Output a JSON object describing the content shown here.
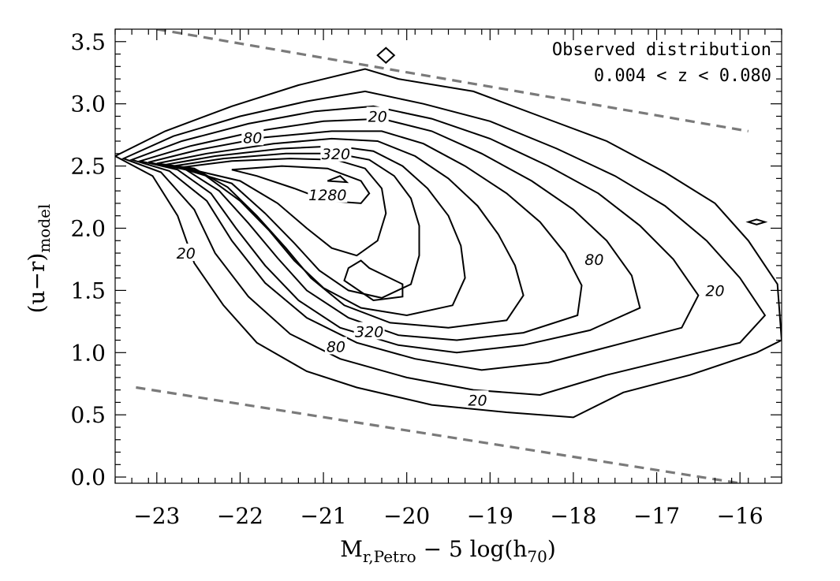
{
  "chart_data": {
    "type": "contour",
    "title": "",
    "xlabel": "M",
    "xlabel_sub": "r,Petro",
    "xlabel_rest_a": " − 5 log(h",
    "xlabel_sub2": "70",
    "xlabel_rest_b": ")",
    "ylabel": "(u−r)",
    "ylabel_sub": "model",
    "xlim": [
      -23.5,
      -15.5
    ],
    "ylim": [
      -0.05,
      3.6
    ],
    "xticks": [
      -23,
      -22,
      -21,
      -20,
      -19,
      -18,
      -17,
      -16
    ],
    "xtick_labels": [
      "−23",
      "−22",
      "−21",
      "−20",
      "−19",
      "−18",
      "−17",
      "−16"
    ],
    "yticks": [
      0.0,
      0.5,
      1.0,
      1.5,
      2.0,
      2.5,
      3.0,
      3.5
    ],
    "ytick_labels": [
      "0.0",
      "0.5",
      "1.0",
      "1.5",
      "2.0",
      "2.5",
      "3.0",
      "3.5"
    ],
    "grid": false,
    "annotations": [
      "Observed distribution",
      "0.004 < z < 0.080"
    ],
    "contour_labels": [
      {
        "text": "20",
        "x": -20.35,
        "y": 2.9
      },
      {
        "text": "80",
        "x": -21.85,
        "y": 2.73
      },
      {
        "text": "320",
        "x": -20.85,
        "y": 2.6
      },
      {
        "text": "1280",
        "x": -20.95,
        "y": 2.27
      },
      {
        "text": "20",
        "x": -22.65,
        "y": 1.8
      },
      {
        "text": "80",
        "x": -17.75,
        "y": 1.75
      },
      {
        "text": "20",
        "x": -16.3,
        "y": 1.5
      },
      {
        "text": "320",
        "x": -20.45,
        "y": 1.17
      },
      {
        "text": "80",
        "x": -20.85,
        "y": 1.05
      },
      {
        "text": "20",
        "x": -19.15,
        "y": 0.62
      }
    ],
    "reference_lines": [
      {
        "name": "upper-cut",
        "points": [
          [
            -23.0,
            3.6
          ],
          [
            -15.9,
            2.78
          ]
        ],
        "style": "dashed",
        "color": "#7a7a7a"
      },
      {
        "name": "lower-cut",
        "points": [
          [
            -23.25,
            0.72
          ],
          [
            -16.0,
            -0.05
          ]
        ],
        "style": "dashed",
        "color": "#7a7a7a"
      }
    ],
    "contours": [
      {
        "level": "outer",
        "points": [
          [
            -23.5,
            2.58
          ],
          [
            -22.9,
            2.78
          ],
          [
            -22.1,
            2.98
          ],
          [
            -21.3,
            3.15
          ],
          [
            -20.5,
            3.28
          ],
          [
            -20.1,
            3.2
          ],
          [
            -19.2,
            3.1
          ],
          [
            -18.4,
            2.9
          ],
          [
            -17.6,
            2.7
          ],
          [
            -16.9,
            2.45
          ],
          [
            -16.3,
            2.2
          ],
          [
            -15.9,
            1.9
          ],
          [
            -15.55,
            1.55
          ],
          [
            -15.5,
            1.1
          ],
          [
            -15.8,
            1.0
          ],
          [
            -16.6,
            0.82
          ],
          [
            -17.4,
            0.68
          ],
          [
            -18.0,
            0.48
          ],
          [
            -18.8,
            0.52
          ],
          [
            -19.7,
            0.58
          ],
          [
            -20.6,
            0.72
          ],
          [
            -21.2,
            0.85
          ],
          [
            -21.8,
            1.08
          ],
          [
            -22.2,
            1.38
          ],
          [
            -22.55,
            1.72
          ],
          [
            -22.75,
            2.1
          ],
          [
            -23.05,
            2.42
          ]
        ]
      },
      {
        "level": "c2",
        "points": [
          [
            -23.4,
            2.56
          ],
          [
            -22.8,
            2.74
          ],
          [
            -22.0,
            2.9
          ],
          [
            -21.2,
            3.02
          ],
          [
            -20.5,
            3.1
          ],
          [
            -19.8,
            3.0
          ],
          [
            -19.0,
            2.86
          ],
          [
            -18.2,
            2.64
          ],
          [
            -17.5,
            2.42
          ],
          [
            -16.9,
            2.18
          ],
          [
            -16.4,
            1.9
          ],
          [
            -16.0,
            1.6
          ],
          [
            -15.7,
            1.3
          ],
          [
            -16.0,
            1.08
          ],
          [
            -16.8,
            0.95
          ],
          [
            -17.6,
            0.82
          ],
          [
            -18.4,
            0.66
          ],
          [
            -19.2,
            0.7
          ],
          [
            -20.0,
            0.8
          ],
          [
            -20.8,
            0.95
          ],
          [
            -21.4,
            1.15
          ],
          [
            -21.9,
            1.45
          ],
          [
            -22.3,
            1.8
          ],
          [
            -22.55,
            2.15
          ],
          [
            -22.95,
            2.45
          ]
        ]
      },
      {
        "level": "c3",
        "points": [
          [
            -23.3,
            2.55
          ],
          [
            -22.7,
            2.7
          ],
          [
            -21.9,
            2.84
          ],
          [
            -21.1,
            2.94
          ],
          [
            -20.4,
            2.98
          ],
          [
            -19.7,
            2.88
          ],
          [
            -19.0,
            2.72
          ],
          [
            -18.3,
            2.5
          ],
          [
            -17.7,
            2.28
          ],
          [
            -17.2,
            2.02
          ],
          [
            -16.8,
            1.75
          ],
          [
            -16.5,
            1.46
          ],
          [
            -16.7,
            1.2
          ],
          [
            -17.5,
            1.06
          ],
          [
            -18.3,
            0.92
          ],
          [
            -19.1,
            0.86
          ],
          [
            -19.9,
            0.95
          ],
          [
            -20.6,
            1.08
          ],
          [
            -21.2,
            1.28
          ],
          [
            -21.7,
            1.56
          ],
          [
            -22.1,
            1.9
          ],
          [
            -22.4,
            2.22
          ],
          [
            -22.85,
            2.46
          ]
        ]
      },
      {
        "level": "c4",
        "points": [
          [
            -23.2,
            2.54
          ],
          [
            -22.6,
            2.66
          ],
          [
            -21.8,
            2.78
          ],
          [
            -21.0,
            2.86
          ],
          [
            -20.3,
            2.88
          ],
          [
            -19.7,
            2.78
          ],
          [
            -19.1,
            2.6
          ],
          [
            -18.5,
            2.38
          ],
          [
            -18.0,
            2.15
          ],
          [
            -17.6,
            1.9
          ],
          [
            -17.3,
            1.62
          ],
          [
            -17.2,
            1.36
          ],
          [
            -17.8,
            1.18
          ],
          [
            -18.6,
            1.06
          ],
          [
            -19.4,
            1.0
          ],
          [
            -20.1,
            1.06
          ],
          [
            -20.8,
            1.2
          ],
          [
            -21.3,
            1.42
          ],
          [
            -21.7,
            1.7
          ],
          [
            -22.05,
            2.0
          ],
          [
            -22.35,
            2.28
          ],
          [
            -22.75,
            2.47
          ]
        ]
      },
      {
        "level": "c5",
        "points": [
          [
            -23.1,
            2.53
          ],
          [
            -22.5,
            2.63
          ],
          [
            -21.7,
            2.73
          ],
          [
            -20.9,
            2.78
          ],
          [
            -20.3,
            2.78
          ],
          [
            -19.8,
            2.68
          ],
          [
            -19.3,
            2.5
          ],
          [
            -18.8,
            2.28
          ],
          [
            -18.4,
            2.05
          ],
          [
            -18.1,
            1.8
          ],
          [
            -17.9,
            1.54
          ],
          [
            -17.95,
            1.3
          ],
          [
            -18.6,
            1.16
          ],
          [
            -19.4,
            1.1
          ],
          [
            -20.1,
            1.14
          ],
          [
            -20.7,
            1.28
          ],
          [
            -21.2,
            1.5
          ],
          [
            -21.55,
            1.76
          ],
          [
            -21.9,
            2.04
          ],
          [
            -22.25,
            2.3
          ],
          [
            -22.65,
            2.47
          ]
        ]
      },
      {
        "level": "c6",
        "points": [
          [
            -23.0,
            2.52
          ],
          [
            -22.4,
            2.6
          ],
          [
            -21.6,
            2.68
          ],
          [
            -20.9,
            2.72
          ],
          [
            -20.35,
            2.7
          ],
          [
            -19.9,
            2.58
          ],
          [
            -19.5,
            2.4
          ],
          [
            -19.15,
            2.18
          ],
          [
            -18.9,
            1.95
          ],
          [
            -18.7,
            1.7
          ],
          [
            -18.6,
            1.46
          ],
          [
            -18.8,
            1.26
          ],
          [
            -19.5,
            1.2
          ],
          [
            -20.2,
            1.24
          ],
          [
            -20.75,
            1.38
          ],
          [
            -21.15,
            1.6
          ],
          [
            -21.45,
            1.84
          ],
          [
            -21.8,
            2.1
          ],
          [
            -22.15,
            2.33
          ],
          [
            -22.55,
            2.48
          ]
        ]
      },
      {
        "level": "c7",
        "points": [
          [
            -22.9,
            2.51
          ],
          [
            -22.3,
            2.58
          ],
          [
            -21.5,
            2.64
          ],
          [
            -20.85,
            2.66
          ],
          [
            -20.4,
            2.62
          ],
          [
            -20.05,
            2.5
          ],
          [
            -19.75,
            2.32
          ],
          [
            -19.5,
            2.1
          ],
          [
            -19.35,
            1.86
          ],
          [
            -19.3,
            1.6
          ],
          [
            -19.45,
            1.38
          ],
          [
            -20.0,
            1.3
          ],
          [
            -20.55,
            1.36
          ],
          [
            -21.0,
            1.52
          ],
          [
            -21.35,
            1.74
          ],
          [
            -21.65,
            1.98
          ],
          [
            -22.0,
            2.22
          ],
          [
            -22.45,
            2.44
          ]
        ]
      },
      {
        "level": "c8",
        "points": [
          [
            -22.8,
            2.5
          ],
          [
            -22.2,
            2.56
          ],
          [
            -21.45,
            2.6
          ],
          [
            -20.85,
            2.6
          ],
          [
            -20.45,
            2.55
          ],
          [
            -20.15,
            2.42
          ],
          [
            -19.95,
            2.24
          ],
          [
            -19.85,
            2.02
          ],
          [
            -19.85,
            1.78
          ],
          [
            -19.95,
            1.55
          ],
          [
            -20.3,
            1.44
          ],
          [
            -20.7,
            1.5
          ],
          [
            -21.05,
            1.66
          ],
          [
            -21.35,
            1.88
          ],
          [
            -21.7,
            2.12
          ],
          [
            -22.1,
            2.36
          ]
        ]
      },
      {
        "level": "c9",
        "points": [
          [
            -22.7,
            2.49
          ],
          [
            -22.1,
            2.54
          ],
          [
            -21.4,
            2.56
          ],
          [
            -20.85,
            2.55
          ],
          [
            -20.5,
            2.48
          ],
          [
            -20.3,
            2.32
          ],
          [
            -20.25,
            2.12
          ],
          [
            -20.35,
            1.9
          ],
          [
            -20.6,
            1.78
          ],
          [
            -20.9,
            1.84
          ],
          [
            -21.2,
            2.0
          ],
          [
            -21.55,
            2.2
          ],
          [
            -22.0,
            2.38
          ]
        ]
      },
      {
        "level": "peak",
        "points": [
          [
            -22.1,
            2.47
          ],
          [
            -21.5,
            2.5
          ],
          [
            -20.95,
            2.48
          ],
          [
            -20.55,
            2.38
          ],
          [
            -20.45,
            2.28
          ],
          [
            -20.55,
            2.2
          ],
          [
            -20.95,
            2.22
          ],
          [
            -21.35,
            2.32
          ],
          [
            -21.8,
            2.42
          ]
        ]
      },
      {
        "level": "blob-lower",
        "points": [
          [
            -20.55,
            1.74
          ],
          [
            -20.45,
            1.68
          ],
          [
            -20.05,
            1.55
          ],
          [
            -20.05,
            1.45
          ],
          [
            -20.4,
            1.42
          ],
          [
            -20.75,
            1.58
          ],
          [
            -20.7,
            1.68
          ]
        ]
      },
      {
        "level": "blob-center",
        "points": [
          [
            -20.95,
            2.38
          ],
          [
            -20.8,
            2.42
          ],
          [
            -20.72,
            2.37
          ]
        ]
      },
      {
        "level": "speck-top",
        "points": [
          [
            -20.35,
            3.39
          ],
          [
            -20.25,
            3.45
          ],
          [
            -20.15,
            3.39
          ],
          [
            -20.25,
            3.33
          ]
        ]
      },
      {
        "level": "speck-right",
        "points": [
          [
            -15.9,
            2.05
          ],
          [
            -15.8,
            2.07
          ],
          [
            -15.7,
            2.05
          ],
          [
            -15.8,
            2.03
          ]
        ]
      }
    ]
  }
}
